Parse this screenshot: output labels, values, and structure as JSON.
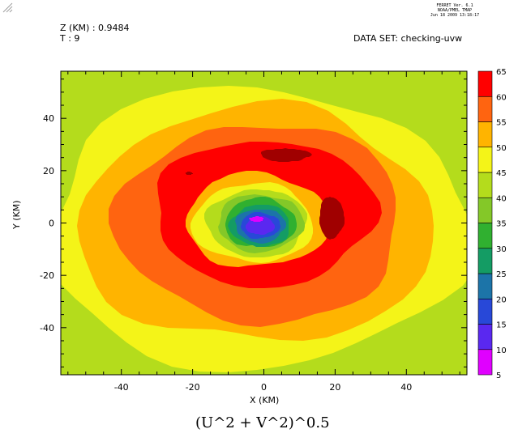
{
  "header": {
    "software": "FERRET Ver. 6.1",
    "org": "NOAA/PMEL TMAP",
    "date": "Jun 18 2009 13:18:17",
    "z_label": "Z (KM) : 0.9484",
    "t_label": "T : 9",
    "dataset": "DATA SET: checking-uvw"
  },
  "chart_data": {
    "type": "heatmap",
    "title": "(U^2 + V^2)^0.5",
    "xlabel": "X (KM)",
    "ylabel": "Y (KM)",
    "xlim": [
      -57,
      57
    ],
    "ylim": [
      -58,
      58
    ],
    "x_ticks": [
      -40,
      -20,
      0,
      20,
      40
    ],
    "y_ticks": [
      -40,
      -20,
      0,
      20,
      40
    ],
    "colorbar_levels": [
      5,
      10,
      15,
      20,
      25,
      30,
      35,
      40,
      45,
      50,
      55,
      60,
      65
    ],
    "colorbar_colors": [
      "#e000ff",
      "#5a28f0",
      "#2848d8",
      "#1c74a8",
      "#149c64",
      "#30b030",
      "#84c828",
      "#b4dc1c",
      "#f4f418",
      "#ffb400",
      "#ff6410",
      "#ff0000",
      "#a00000"
    ],
    "contours": [
      {
        "level": 40,
        "color": "#b4dc1c",
        "shape": "background"
      },
      {
        "level": 45,
        "color": "#f4f418",
        "cx": -2,
        "cy": -2,
        "rx": 59,
        "ry": 54
      },
      {
        "level": 50,
        "color": "#ffb400",
        "cx": -2,
        "cy": -1,
        "rx": 50,
        "ry": 45
      },
      {
        "level": 55,
        "color": "#ff6410",
        "cx": -1,
        "cy": 0,
        "rx": 40,
        "ry": 38
      },
      {
        "level": 60,
        "color": "#ff0000",
        "cx": 0,
        "cy": 4,
        "rx": 31,
        "ry": 28
      },
      {
        "level": 50,
        "color": "#ffb400",
        "cx": -2,
        "cy": 1,
        "rx": 20,
        "ry": 18
      },
      {
        "level": 45,
        "color": "#f4f418",
        "cx": -3,
        "cy": 0,
        "rx": 17,
        "ry": 15
      },
      {
        "level": 40,
        "color": "#b4dc1c",
        "cx": -2,
        "cy": 0,
        "rx": 14,
        "ry": 13
      },
      {
        "level": 35,
        "color": "#84c828",
        "cx": -1,
        "cy": 0,
        "rx": 12,
        "ry": 11
      },
      {
        "level": 30,
        "color": "#30b030",
        "cx": -1,
        "cy": 0,
        "rx": 10,
        "ry": 9.5
      },
      {
        "level": 25,
        "color": "#149c64",
        "cx": -1,
        "cy": -1,
        "rx": 8.5,
        "ry": 8
      },
      {
        "level": 20,
        "color": "#1c74a8",
        "cx": -1,
        "cy": -1,
        "rx": 7,
        "ry": 6.5
      },
      {
        "level": 15,
        "color": "#2848d8",
        "cx": -1,
        "cy": -1,
        "rx": 5.5,
        "ry": 5
      },
      {
        "level": 10,
        "color": "#5a28f0",
        "cx": -1,
        "cy": -1,
        "rx": 4,
        "ry": 3.5
      },
      {
        "level": 5,
        "color": "#e000ff",
        "cx": -2,
        "cy": 1.5,
        "rx": 2,
        "ry": 1
      }
    ],
    "maxima": [
      {
        "level": 65,
        "color": "#a00000",
        "cx": 6,
        "cy": 26,
        "rx": 7,
        "ry": 2.5
      },
      {
        "level": 65,
        "color": "#a00000",
        "cx": 19,
        "cy": 2,
        "rx": 3.5,
        "ry": 8
      },
      {
        "level": 65,
        "color": "#a00000",
        "cx": -21,
        "cy": 19,
        "rx": 1,
        "ry": 0.6
      }
    ]
  }
}
